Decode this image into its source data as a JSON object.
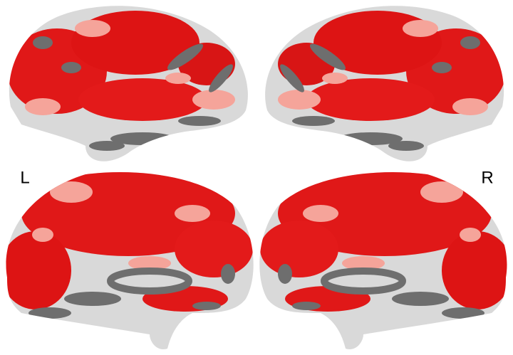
{
  "labels": {
    "left": "L",
    "right": "R"
  }
}
